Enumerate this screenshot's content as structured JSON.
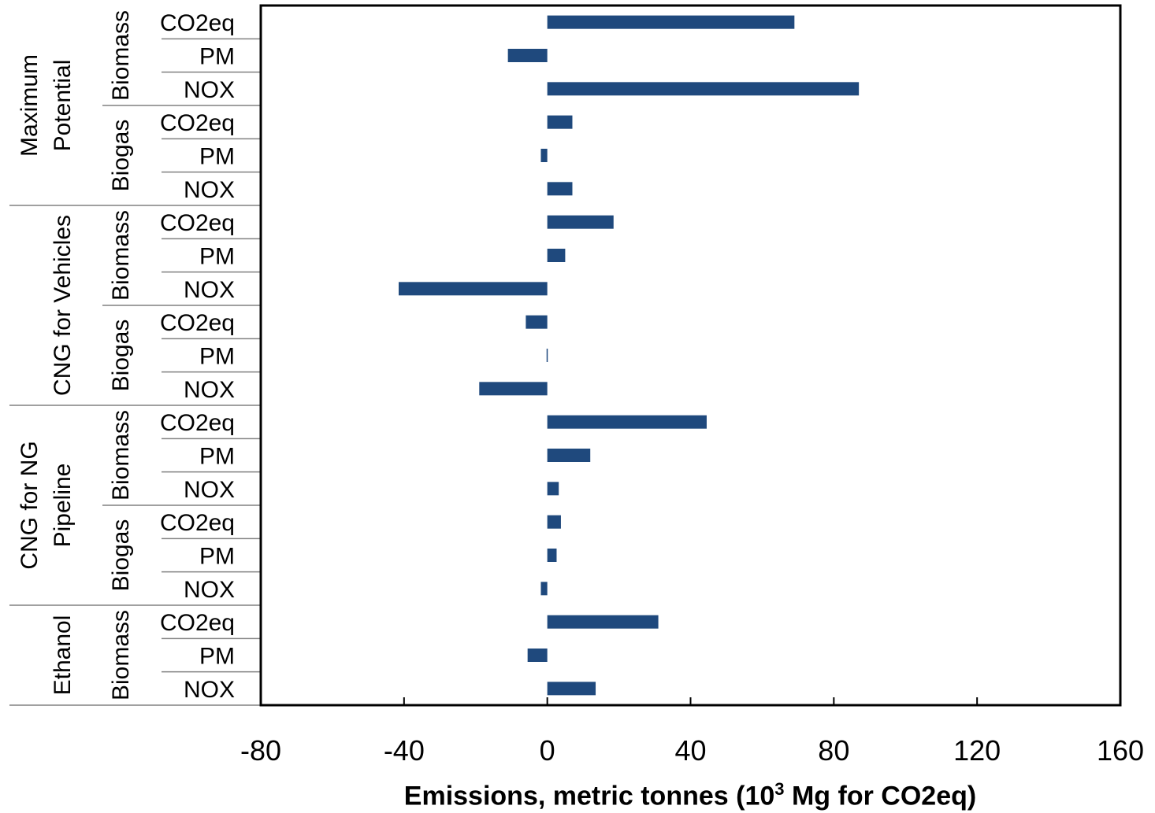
{
  "chart_data": {
    "type": "bar",
    "orientation": "horizontal",
    "title": "",
    "xlabel_prefix": "Emissions, metric tonnes (10",
    "xlabel_sup": "3",
    "xlabel_suffix": " Mg for CO2eq)",
    "ylabel": "",
    "xlim": [
      -80,
      160
    ],
    "xticks": [
      "-80",
      "-40",
      "0",
      "40",
      "80",
      "120",
      "160"
    ],
    "grid": false,
    "legend": "none",
    "bar_color": "#1f497d",
    "groups": [
      {
        "label": "Maximum Potential",
        "label_lines": [
          "Maximum",
          "Potential"
        ],
        "subgroups": [
          {
            "label": "Biomass",
            "rows": [
              {
                "label": "CO2eq",
                "value": 69
              },
              {
                "label": "PM",
                "value": -11
              },
              {
                "label": "NOX",
                "value": 87
              }
            ]
          },
          {
            "label": "Biogas",
            "rows": [
              {
                "label": "CO2eq",
                "value": 7
              },
              {
                "label": "PM",
                "value": -1.8
              },
              {
                "label": "NOX",
                "value": 7
              }
            ]
          }
        ]
      },
      {
        "label": "CNG for Vehicles",
        "label_lines": [
          "CNG for Vehicles"
        ],
        "subgroups": [
          {
            "label": "Biomass",
            "rows": [
              {
                "label": "CO2eq",
                "value": 18.5
              },
              {
                "label": "PM",
                "value": 5
              },
              {
                "label": "NOX",
                "value": -41.5
              }
            ]
          },
          {
            "label": "Biogas",
            "rows": [
              {
                "label": "CO2eq",
                "value": -6
              },
              {
                "label": "PM",
                "value": -0.2
              },
              {
                "label": "NOX",
                "value": -19
              }
            ]
          }
        ]
      },
      {
        "label": "CNG for NG Pipeline",
        "label_lines": [
          "CNG for NG",
          "Pipeline"
        ],
        "subgroups": [
          {
            "label": "Biomass",
            "rows": [
              {
                "label": "CO2eq",
                "value": 44.5
              },
              {
                "label": "PM",
                "value": 12
              },
              {
                "label": "NOX",
                "value": 3.2
              }
            ]
          },
          {
            "label": "Biogas",
            "rows": [
              {
                "label": "CO2eq",
                "value": 3.8
              },
              {
                "label": "PM",
                "value": 2.6
              },
              {
                "label": "NOX",
                "value": -1.8
              }
            ]
          }
        ]
      },
      {
        "label": "Ethanol",
        "label_lines": [
          "Ethanol"
        ],
        "subgroups": [
          {
            "label": "Biomass",
            "rows": [
              {
                "label": "CO2eq",
                "value": 31
              },
              {
                "label": "PM",
                "value": -5.5
              },
              {
                "label": "NOX",
                "value": 13.5
              }
            ]
          }
        ]
      }
    ]
  }
}
